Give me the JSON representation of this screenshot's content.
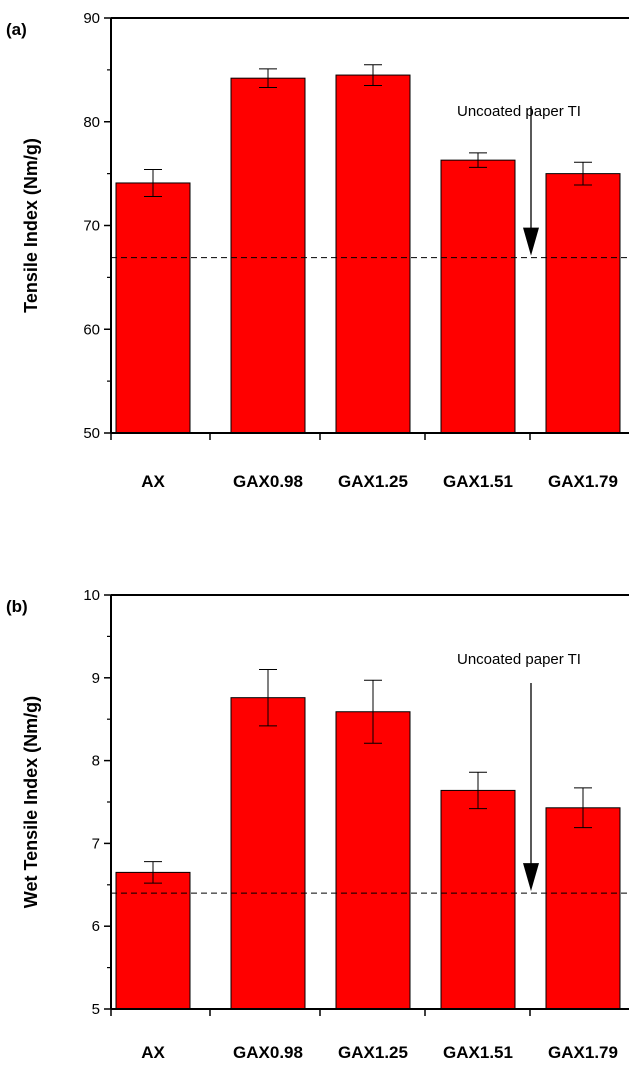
{
  "chart_data": [
    {
      "type": "bar",
      "panel_label": "(a)",
      "categories": [
        "AX",
        "GAX0.98",
        "GAX1.25",
        "GAX1.51",
        "GAX1.79"
      ],
      "values": [
        74.1,
        84.2,
        84.5,
        76.3,
        75.0
      ],
      "errors": [
        1.3,
        0.9,
        1.0,
        0.7,
        1.1
      ],
      "ylabel": "Tensile Index (Nm/g)",
      "xlabel": "",
      "ylim": [
        50,
        90
      ],
      "yticks": [
        50,
        60,
        70,
        80,
        90
      ],
      "reference": {
        "value": 66.9,
        "label": "Uncoated paper TI"
      },
      "bar_color": "#ff0000",
      "grid": false
    },
    {
      "type": "bar",
      "panel_label": "(b)",
      "categories": [
        "AX",
        "GAX0.98",
        "GAX1.25",
        "GAX1.51",
        "GAX1.79"
      ],
      "values": [
        6.65,
        8.76,
        8.59,
        7.64,
        7.43
      ],
      "errors": [
        0.13,
        0.34,
        0.38,
        0.22,
        0.24
      ],
      "ylabel": "Wet Tensile Index (Nm/g)",
      "xlabel": "",
      "ylim": [
        5,
        10
      ],
      "yticks": [
        5,
        6,
        7,
        8,
        9,
        10
      ],
      "reference": {
        "value": 6.4,
        "label": "Uncoated paper TI"
      },
      "bar_color": "#ff0000",
      "grid": false
    }
  ]
}
